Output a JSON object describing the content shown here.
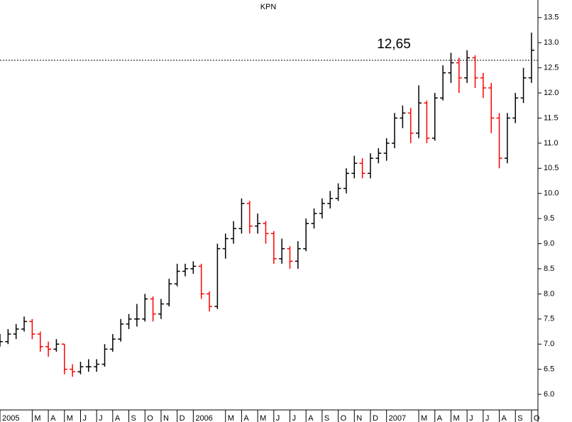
{
  "chart_data": {
    "type": "ohlc",
    "title": "KPN",
    "x": [
      0,
      0.5,
      1,
      1.5,
      2,
      2.5,
      3,
      3.5,
      4,
      4.5,
      5,
      5.5,
      6,
      6.5,
      7,
      7.5,
      8,
      8.5,
      9,
      9.5,
      10,
      10.5,
      11,
      11.5,
      12,
      12.5,
      13,
      13.5,
      14,
      14.5,
      15,
      15.5,
      16,
      16.5,
      17,
      17.5,
      18,
      18.5,
      19,
      19.5,
      20,
      20.5,
      21,
      21.5,
      22,
      22.5,
      23,
      23.5,
      24,
      24.5,
      25,
      25.5,
      26,
      26.5,
      27,
      27.5,
      28,
      28.5,
      29,
      29.5,
      30,
      30.5,
      31,
      31.5,
      32,
      32.5,
      33
    ],
    "open": [
      7.0,
      7.05,
      7.2,
      7.3,
      7.45,
      7.2,
      6.95,
      6.9,
      7.0,
      6.5,
      6.45,
      6.55,
      6.55,
      6.6,
      6.9,
      7.1,
      7.4,
      7.5,
      7.5,
      7.9,
      7.6,
      7.8,
      8.2,
      8.45,
      8.5,
      8.55,
      8.0,
      7.75,
      8.9,
      9.1,
      9.3,
      9.8,
      9.35,
      9.4,
      9.2,
      8.7,
      8.9,
      8.65,
      8.9,
      9.4,
      9.6,
      9.8,
      9.9,
      10.1,
      10.4,
      10.6,
      10.4,
      10.7,
      10.8,
      11.0,
      11.5,
      11.6,
      11.2,
      11.8,
      11.1,
      11.9,
      12.4,
      12.6,
      12.3,
      12.7,
      12.3,
      12.1,
      11.5,
      10.7,
      11.5,
      11.9,
      12.3
    ],
    "high": [
      7.2,
      7.3,
      7.4,
      7.55,
      7.5,
      7.25,
      7.05,
      7.1,
      7.0,
      6.6,
      6.65,
      6.7,
      6.7,
      7.0,
      7.2,
      7.5,
      7.6,
      7.8,
      8.0,
      7.95,
      7.9,
      8.3,
      8.6,
      8.6,
      8.65,
      8.6,
      8.05,
      9.0,
      9.2,
      9.45,
      9.9,
      9.85,
      9.6,
      9.45,
      9.25,
      9.1,
      8.95,
      9.05,
      9.5,
      9.7,
      9.9,
      10.05,
      10.2,
      10.5,
      10.75,
      10.7,
      10.8,
      10.9,
      11.1,
      11.6,
      11.75,
      11.7,
      12.15,
      11.85,
      12.0,
      12.55,
      12.8,
      12.7,
      12.85,
      12.75,
      12.4,
      12.2,
      11.6,
      11.6,
      12.0,
      12.5,
      13.2
    ],
    "low": [
      6.95,
      7.0,
      7.1,
      7.25,
      7.1,
      6.85,
      6.75,
      6.85,
      6.4,
      6.35,
      6.4,
      6.45,
      6.45,
      6.55,
      6.85,
      7.05,
      7.3,
      7.35,
      7.45,
      7.45,
      7.5,
      7.75,
      8.15,
      8.35,
      8.4,
      7.9,
      7.65,
      7.7,
      8.7,
      9.0,
      9.2,
      9.2,
      9.2,
      9.0,
      8.6,
      8.6,
      8.5,
      8.5,
      8.85,
      9.3,
      9.5,
      9.7,
      9.85,
      10.0,
      10.3,
      10.3,
      10.3,
      10.6,
      10.65,
      10.9,
      11.3,
      11.0,
      11.1,
      11.0,
      11.05,
      11.85,
      12.2,
      12.0,
      12.2,
      12.1,
      11.9,
      11.2,
      10.5,
      10.6,
      11.4,
      11.8,
      12.2
    ],
    "close": [
      7.05,
      7.2,
      7.3,
      7.45,
      7.2,
      6.95,
      6.9,
      7.0,
      6.5,
      6.45,
      6.55,
      6.55,
      6.6,
      6.9,
      7.1,
      7.4,
      7.5,
      7.5,
      7.9,
      7.6,
      7.8,
      8.2,
      8.45,
      8.5,
      8.55,
      8.0,
      7.75,
      8.9,
      9.1,
      9.3,
      9.8,
      9.35,
      9.4,
      9.2,
      8.7,
      8.9,
      8.65,
      8.9,
      9.4,
      9.6,
      9.8,
      9.9,
      10.1,
      10.4,
      10.6,
      10.4,
      10.7,
      10.8,
      11.0,
      11.5,
      11.6,
      11.2,
      11.8,
      11.1,
      11.9,
      12.4,
      12.6,
      12.3,
      12.7,
      12.3,
      12.1,
      11.5,
      10.7,
      11.5,
      11.9,
      12.3,
      12.85
    ],
    "up_color": "#000000",
    "down_color": "#ff0000",
    "xlim": [
      0,
      33.4
    ],
    "xticks": [
      {
        "value": 0,
        "label": "2005"
      },
      {
        "value": 2,
        "label": "M"
      },
      {
        "value": 3,
        "label": "A"
      },
      {
        "value": 4,
        "label": "M"
      },
      {
        "value": 5,
        "label": "J"
      },
      {
        "value": 6,
        "label": "J"
      },
      {
        "value": 7,
        "label": "A"
      },
      {
        "value": 8,
        "label": "S"
      },
      {
        "value": 9,
        "label": "O"
      },
      {
        "value": 10,
        "label": "N"
      },
      {
        "value": 11,
        "label": "D"
      },
      {
        "value": 12,
        "label": "2006"
      },
      {
        "value": 14,
        "label": "M"
      },
      {
        "value": 15,
        "label": "A"
      },
      {
        "value": 16,
        "label": "M"
      },
      {
        "value": 17,
        "label": "J"
      },
      {
        "value": 18,
        "label": "J"
      },
      {
        "value": 19,
        "label": "A"
      },
      {
        "value": 20,
        "label": "S"
      },
      {
        "value": 21,
        "label": "O"
      },
      {
        "value": 22,
        "label": "N"
      },
      {
        "value": 23,
        "label": "D"
      },
      {
        "value": 24,
        "label": "2007"
      },
      {
        "value": 26,
        "label": "M"
      },
      {
        "value": 27,
        "label": "A"
      },
      {
        "value": 28,
        "label": "M"
      },
      {
        "value": 29,
        "label": "J"
      },
      {
        "value": 30,
        "label": "J"
      },
      {
        "value": 31,
        "label": "A"
      },
      {
        "value": 32,
        "label": "S"
      },
      {
        "value": 33,
        "label": "O"
      }
    ],
    "ylim": [
      5.69,
      13.85
    ],
    "yticks": [
      {
        "value": 6,
        "label": "6.0"
      },
      6.5,
      {
        "value": 7,
        "label": "7.0"
      },
      7.5,
      {
        "value": 8,
        "label": "8.0"
      },
      8.5,
      {
        "value": 9,
        "label": "9.0"
      },
      9.5,
      {
        "value": 10,
        "label": "10.0"
      },
      10.5,
      {
        "value": 11,
        "label": "11.0"
      },
      11.5,
      {
        "value": 12,
        "label": "12.0"
      },
      12.5,
      {
        "value": 13,
        "label": "13.0"
      },
      13.5
    ],
    "ref_line": {
      "value": 12.65,
      "label": "12,65",
      "color": "#0000cc"
    }
  }
}
